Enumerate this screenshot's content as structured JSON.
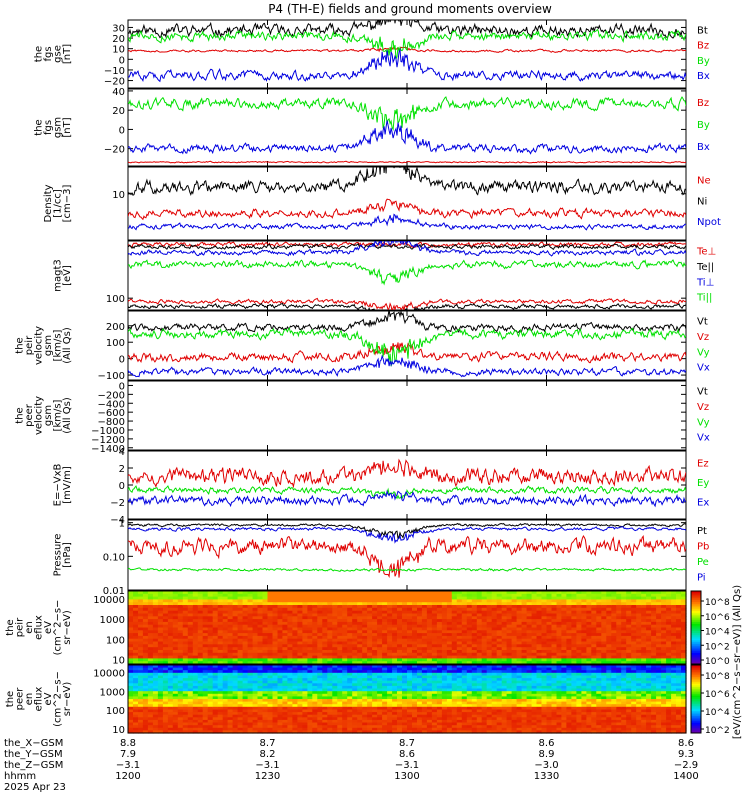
{
  "title": "P4 (TH-E) fields and ground moments overview",
  "colors": {
    "black": "#000000",
    "red": "#e00000",
    "green": "#00e000",
    "blue": "#0000e0"
  },
  "chart_data": [
    {
      "type": "line",
      "panel": "fgs_gse",
      "ylabel_lines": [
        "the",
        "fgs",
        "gse",
        "[nT]"
      ],
      "yscale": "linear",
      "ylim": [
        -27,
        37
      ],
      "yticks": [
        {
          "v": 30,
          "label": "30"
        },
        {
          "v": 20,
          "label": "20"
        },
        {
          "v": 10,
          "label": "10"
        },
        {
          "v": 0,
          "label": "0"
        },
        {
          "v": -10,
          "label": "−10"
        },
        {
          "v": -20,
          "label": "−20"
        }
      ],
      "series": [
        {
          "name": "Bt",
          "color": "#000000",
          "base": 27,
          "amp": 5,
          "event": 10
        },
        {
          "name": "Bz",
          "color": "#e00000",
          "base": 8,
          "amp": 1,
          "event": 2
        },
        {
          "name": "By",
          "color": "#00e000",
          "base": 22,
          "amp": 4,
          "event": -14
        },
        {
          "name": "Bx",
          "color": "#0000e0",
          "base": -15,
          "amp": 4,
          "event": 16
        }
      ]
    },
    {
      "type": "line",
      "panel": "fgs_gsm",
      "ylabel_lines": [
        "the",
        "fgs",
        "gsm",
        "[nT]"
      ],
      "yscale": "linear",
      "ylim": [
        -38,
        42
      ],
      "yticks": [
        {
          "v": 40,
          "label": "40"
        },
        {
          "v": 20,
          "label": "20"
        },
        {
          "v": 0,
          "label": "0"
        },
        {
          "v": -20,
          "label": "−20"
        }
      ],
      "series": [
        {
          "name": "Bz",
          "color": "#e00000",
          "base": -34,
          "amp": 0.6,
          "event": 0
        },
        {
          "name": "By",
          "color": "#00e000",
          "base": 27,
          "amp": 5,
          "event": -18
        },
        {
          "name": "Bx",
          "color": "#0000e0",
          "base": -20,
          "amp": 4,
          "event": 20
        }
      ]
    },
    {
      "type": "line",
      "panel": "density",
      "ylabel_lines": [
        "Density",
        "[1/cc]",
        "[cm−3]"
      ],
      "yscale": "log",
      "ylim": [
        1.5,
        30
      ],
      "yticks": [
        {
          "v": 10,
          "label": "10"
        }
      ],
      "series": [
        {
          "name": "Ne",
          "color": "#e00000",
          "base": 4.5,
          "amp": 0.08,
          "event": 0.2
        },
        {
          "name": "Ni",
          "color": "#000000",
          "base": 13,
          "amp": 0.12,
          "event": 0.5
        },
        {
          "name": "Npot",
          "color": "#0000e0",
          "base": 2.6,
          "amp": 0.05,
          "event": 0.15
        }
      ]
    },
    {
      "type": "line",
      "panel": "temperature",
      "ylabel_lines": [
        "magt3",
        "[eV]"
      ],
      "yscale": "log",
      "ylim": [
        55,
        1800
      ],
      "yticks": [
        {
          "v": 100,
          "label": "100"
        }
      ],
      "series": [
        {
          "name": "Te⊥",
          "color": "#e00000",
          "base": 1500,
          "amp": 0.05,
          "event": 0
        },
        {
          "name": "Te||",
          "color": "#000000",
          "base": 1350,
          "amp": 0.05,
          "event": 0
        },
        {
          "name": "Ti⊥",
          "color": "#0000e0",
          "base": 1000,
          "amp": 0.06,
          "event": 0.3
        },
        {
          "name": "Ti||",
          "color": "#00e000",
          "base": 550,
          "amp": 0.08,
          "event": -0.3
        },
        {
          "name": "",
          "color": "#e00000",
          "base": 85,
          "amp": 0.05,
          "event": -0.15
        },
        {
          "name": "",
          "color": "#000000",
          "base": 66,
          "amp": 0.05,
          "event": -0.15
        }
      ]
    },
    {
      "type": "line",
      "panel": "peir_velocity",
      "ylabel_lines": [
        "the",
        "peir",
        "velocity",
        "gsm",
        "[km/s]",
        "(All Qs)"
      ],
      "yscale": "linear",
      "ylim": [
        -130,
        290
      ],
      "yticks": [
        {
          "v": 200,
          "label": "200"
        },
        {
          "v": 100,
          "label": "100"
        },
        {
          "v": 0,
          "label": "0"
        },
        {
          "v": -100,
          "label": "−100"
        }
      ],
      "series": [
        {
          "name": "Vt",
          "color": "#000000",
          "base": 190,
          "amp": 20,
          "event": 60
        },
        {
          "name": "Vz",
          "color": "#e00000",
          "base": 10,
          "amp": 25,
          "event": 60
        },
        {
          "name": "Vy",
          "color": "#00e000",
          "base": 150,
          "amp": 25,
          "event": -120
        },
        {
          "name": "Vx",
          "color": "#0000e0",
          "base": -80,
          "amp": 20,
          "event": 80
        }
      ]
    },
    {
      "type": "line",
      "panel": "peer_velocity",
      "ylabel_lines": [
        "the",
        "peer",
        "velocity",
        "gsm",
        "[km/s]",
        "(All Qs)"
      ],
      "yscale": "linear",
      "ylim": [
        -1450,
        100
      ],
      "yticks": [
        {
          "v": 0,
          "label": "0"
        },
        {
          "v": -200,
          "label": "−200"
        },
        {
          "v": -400,
          "label": "−400"
        },
        {
          "v": -600,
          "label": "−600"
        },
        {
          "v": -800,
          "label": "−800"
        },
        {
          "v": -1000,
          "label": "−1000"
        },
        {
          "v": -1200,
          "label": "−1200"
        },
        {
          "v": -1400,
          "label": "−1400"
        }
      ],
      "series": [
        {
          "name": "Vt",
          "color": "#000000",
          "base": null
        },
        {
          "name": "Vz",
          "color": "#e00000",
          "base": null
        },
        {
          "name": "Vy",
          "color": "#00e000",
          "base": null
        },
        {
          "name": "Vx",
          "color": "#0000e0",
          "base": null
        }
      ]
    },
    {
      "type": "line",
      "panel": "e_vxb",
      "ylabel_lines": [
        "E=−VxB",
        "[mV/m]"
      ],
      "yscale": "linear",
      "ylim": [
        -4,
        4
      ],
      "yticks": [
        {
          "v": 4,
          "label": "4"
        },
        {
          "v": 2,
          "label": "2"
        },
        {
          "v": 0,
          "label": "0"
        },
        {
          "v": -2,
          "label": "−2"
        },
        {
          "v": -4,
          "label": "−4"
        }
      ],
      "series": [
        {
          "name": "Ez",
          "color": "#e00000",
          "base": 1.0,
          "amp": 0.9,
          "event": 1.2
        },
        {
          "name": "Ey",
          "color": "#00e000",
          "base": -0.6,
          "amp": 0.35,
          "event": -0.5
        },
        {
          "name": "Ex",
          "color": "#0000e0",
          "base": -1.8,
          "amp": 0.5,
          "event": 0.5
        }
      ]
    },
    {
      "type": "line",
      "panel": "pressure",
      "ylabel_lines": [
        "Pressure",
        "[nPa]"
      ],
      "yscale": "log",
      "ylim": [
        0.01,
        1.2
      ],
      "yticks": [
        {
          "v": 1,
          "label": "1"
        },
        {
          "v": 0.1,
          "label": "0.10"
        },
        {
          "v": 0.01,
          "label": "0.01"
        }
      ],
      "series": [
        {
          "name": "Pt",
          "color": "#000000",
          "base": 0.85,
          "amp": 0.04,
          "event": -0.3
        },
        {
          "name": "Pb",
          "color": "#e00000",
          "base": 0.2,
          "amp": 0.25,
          "event": -0.6
        },
        {
          "name": "Pe",
          "color": "#00e000",
          "base": 0.04,
          "amp": 0.04,
          "event": 0
        },
        {
          "name": "Pi",
          "color": "#0000e0",
          "base": 0.65,
          "amp": 0.05,
          "event": -0.3
        }
      ]
    },
    {
      "type": "heatmap",
      "panel": "peir_en_eflux",
      "ylabel_lines": [
        "the",
        "peir",
        "en",
        "eflux",
        "eV",
        "(cm^2−s−",
        "sr−eV)"
      ],
      "yscale": "log",
      "ylim": [
        6,
        25000
      ],
      "yticks": [
        {
          "v": 10000,
          "label": "10000"
        },
        {
          "v": 1000,
          "label": "1000"
        },
        {
          "v": 100,
          "label": "100"
        },
        {
          "v": 10,
          "label": "10"
        }
      ]
    },
    {
      "type": "heatmap",
      "panel": "peer_en_eflux",
      "ylabel_lines": [
        "the",
        "peer",
        "en",
        "eflux",
        "eV",
        "(cm^2−s−",
        "sr−eV)"
      ],
      "yscale": "log",
      "ylim": [
        6,
        25000
      ],
      "yticks": [
        {
          "v": 10000,
          "label": "10000"
        },
        {
          "v": 1000,
          "label": "1000"
        },
        {
          "v": 100,
          "label": "100"
        },
        {
          "v": 10,
          "label": "10"
        }
      ]
    }
  ],
  "colorbar": {
    "title": "[eV/(cm^2−s−sr−eV)] (All Qs)",
    "upper_ticks": [
      "10^8",
      "10^6",
      "10^4",
      "10^2",
      "10^0"
    ],
    "lower_ticks": [
      "10^8",
      "10^6",
      "10^4",
      "10^2"
    ]
  },
  "time_axis": {
    "rows": [
      {
        "label": "the_X−GSM",
        "values": [
          "8.8",
          "8.7",
          "8.7",
          "8.6",
          "8.6"
        ]
      },
      {
        "label": "the_Y−GSM",
        "values": [
          "7.9",
          "8.2",
          "8.6",
          "8.9",
          "9.3"
        ]
      },
      {
        "label": "the_Z−GSM",
        "values": [
          "−3.1",
          "−3.1",
          "−3.1",
          "−3.0",
          "−2.9"
        ]
      },
      {
        "label": "hhmm",
        "values": [
          "1200",
          "1230",
          "1300",
          "1330",
          "1400"
        ]
      }
    ],
    "date": "2025 Apr 23",
    "minutes": [
      0,
      30,
      60,
      90,
      120
    ],
    "event_center_min": 57
  }
}
